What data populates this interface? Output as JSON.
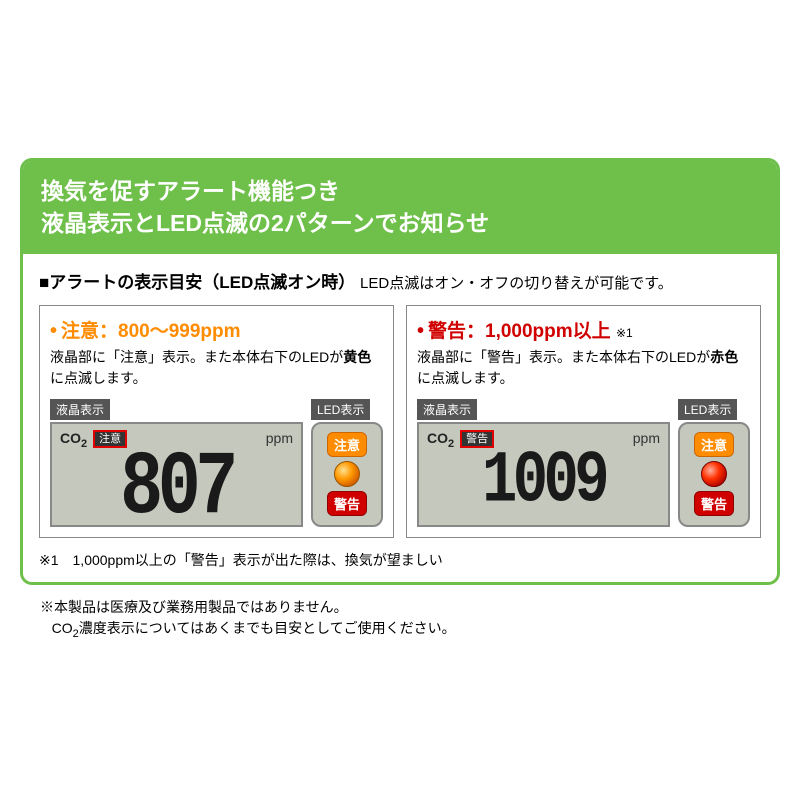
{
  "colors": {
    "accent_green": "#6ec04a",
    "caution_orange": "#ff8c00",
    "warning_red": "#d00000",
    "lcd_bg": "#c4c8bd",
    "highlight_red": "#e00000"
  },
  "header": {
    "line1": "換気を促すアラート機能つき",
    "line2": "液晶表示とLED点滅の2パターンでお知らせ"
  },
  "subhead": {
    "prefix": "■",
    "title": "アラートの表示目安（LED点滅オン時）",
    "note": "LED点滅はオン・オフの切り替えが可能です。"
  },
  "panels": [
    {
      "title_color": "#ff8c00",
      "dot": "•",
      "title": "注意：800〜999ppm",
      "desc_pre": "液晶部に「注意」表示。また本体右下のLEDが",
      "desc_emph": "黄色",
      "desc_post": "に点滅します。",
      "lcd_label": "液晶表示",
      "led_label": "LED表示",
      "lcd": {
        "co2": "CO",
        "co2_sub": "2",
        "indicator": "注意",
        "ppm": "ppm",
        "value": "807"
      },
      "led": {
        "badge_top": "注意",
        "badge_bottom": "警告",
        "light_class": "orange"
      }
    },
    {
      "title_color": "#d00000",
      "dot": "•",
      "title": "警告：1,000ppm以上",
      "title_sup": "※1",
      "desc_pre": "液晶部に「警告」表示。また本体右下のLEDが",
      "desc_emph": "赤色",
      "desc_post": "に点滅します。",
      "lcd_label": "液晶表示",
      "led_label": "LED表示",
      "lcd": {
        "co2": "CO",
        "co2_sub": "2",
        "indicator": "警告",
        "ppm": "ppm",
        "value": "1009"
      },
      "led": {
        "badge_top": "注意",
        "badge_bottom": "警告",
        "light_class": "red"
      }
    }
  ],
  "footnote": "※1　1,000ppm以上の「警告」表示が出た際は、換気が望ましい",
  "disclaimer": {
    "line1": "※本製品は医療及び業務用製品ではありません。",
    "line2_pre": "CO",
    "line2_sub": "2",
    "line2_post": "濃度表示についてはあくまでも目安としてご使用ください。"
  }
}
